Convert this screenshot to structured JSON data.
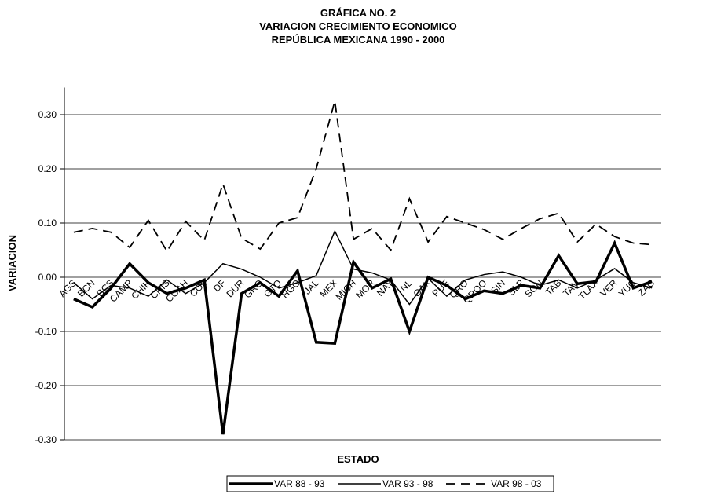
{
  "chart_data": {
    "type": "line",
    "title": [
      "GRÁFICA NO. 2",
      "VARIACION CRECIMIENTO ECONOMICO",
      "REPÚBLICA MEXICANA 1990 - 2000"
    ],
    "x_label": "ESTADO",
    "y_label": "VARIACION",
    "categories": [
      "AGS",
      "BCN",
      "BCS",
      "CAMP",
      "CHIH",
      "CHIS",
      "COAH",
      "COL",
      "DF",
      "DUR",
      "GRO",
      "GTO",
      "HGO",
      "JAL",
      "MEX",
      "MICH",
      "MOR",
      "NAY",
      "NL",
      "OAX",
      "PUE",
      "QRO",
      "QROO",
      "SIN",
      "SLP",
      "SON",
      "TAB",
      "TAM",
      "TLAX",
      "VER",
      "YUC",
      "ZAC"
    ],
    "series": [
      {
        "name": "VAR 88 - 93",
        "color": "#000000",
        "width": 3.5,
        "dash": "none",
        "values": [
          -0.04,
          -0.055,
          -0.02,
          0.025,
          -0.01,
          -0.03,
          -0.02,
          -0.005,
          -0.29,
          -0.03,
          -0.01,
          -0.035,
          0.012,
          -0.12,
          -0.122,
          0.028,
          -0.02,
          -0.003,
          -0.1,
          0.0,
          -0.015,
          -0.04,
          -0.025,
          -0.03,
          -0.015,
          -0.02,
          0.04,
          -0.012,
          -0.008,
          0.063,
          -0.02,
          -0.008
        ]
      },
      {
        "name": "VAR 93 - 98",
        "color": "#000000",
        "width": 1.5,
        "dash": "none",
        "values": [
          -0.01,
          -0.04,
          -0.015,
          -0.02,
          -0.035,
          -0.005,
          -0.03,
          -0.01,
          0.025,
          0.015,
          0.0,
          -0.02,
          -0.01,
          0.003,
          0.085,
          0.015,
          0.008,
          -0.005,
          -0.05,
          -0.002,
          -0.035,
          -0.005,
          0.005,
          0.01,
          0.0,
          -0.015,
          -0.005,
          -0.02,
          -0.005,
          0.016,
          -0.01,
          -0.02
        ]
      },
      {
        "name": "VAR 98 - 03",
        "color": "#000000",
        "width": 1.8,
        "dash": "12,7",
        "values": [
          0.083,
          0.09,
          0.083,
          0.055,
          0.105,
          0.048,
          0.103,
          0.068,
          0.172,
          0.072,
          0.052,
          0.1,
          0.11,
          0.2,
          0.325,
          0.07,
          0.09,
          0.05,
          0.145,
          0.065,
          0.112,
          0.1,
          0.088,
          0.07,
          0.09,
          0.108,
          0.118,
          0.065,
          0.098,
          0.075,
          0.063,
          0.06
        ]
      }
    ],
    "ylim": [
      -0.3,
      0.35
    ],
    "yticks": [
      {
        "value": -0.3,
        "label": "-0.30"
      },
      {
        "value": -0.2,
        "label": "-0.20"
      },
      {
        "value": -0.1,
        "label": "-0.10"
      },
      {
        "value": 0,
        "label": "0.00"
      },
      {
        "value": 0.1,
        "label": "0.10"
      },
      {
        "value": 0.2,
        "label": "0.20"
      },
      {
        "value": 0.3,
        "label": "0.30"
      }
    ],
    "grid": true,
    "legend": "bottom"
  }
}
